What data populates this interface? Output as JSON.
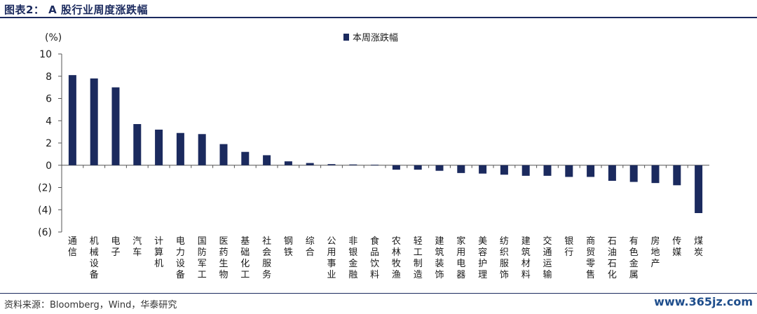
{
  "header": {
    "title": "图表2：  A 股行业周度涨跌幅"
  },
  "footer": {
    "source": "资料来源：Bloomberg，Wind，华泰研究",
    "watermark": "www.365jz.com"
  },
  "colors": {
    "bar": "#1b2a5e",
    "axis": "#555555",
    "title": "#1b2a5e"
  },
  "chart_data": {
    "type": "bar",
    "title": "",
    "xlabel": "",
    "ylabel": "(%)",
    "ylim": [
      -6,
      10
    ],
    "yticks": [
      10,
      8,
      6,
      4,
      2,
      0,
      -2,
      -4,
      -6
    ],
    "ytick_labels": [
      "10",
      "8",
      "6",
      "4",
      "2",
      "0",
      "(2)",
      "(4)",
      "(6)"
    ],
    "grid": false,
    "legend_position": "top-center",
    "categories": [
      "通信",
      "机械设备",
      "电子",
      "汽车",
      "计算机",
      "电力设备",
      "国防军工",
      "医药生物",
      "基础化工",
      "社会服务",
      "钢铁",
      "综合",
      "公用事业",
      "非银金融",
      "食品饮料",
      "农林牧渔",
      "轻工制造",
      "建筑装饰",
      "家用电器",
      "美容护理",
      "纺织服饰",
      "建筑材料",
      "交通运输",
      "银行",
      "商贸零售",
      "石油石化",
      "有色金属",
      "房地产",
      "传媒",
      "煤炭"
    ],
    "series": [
      {
        "name": "本周涨跌幅",
        "values": [
          8.1,
          7.8,
          7.0,
          3.7,
          3.2,
          2.9,
          2.8,
          1.9,
          1.2,
          0.9,
          0.35,
          0.2,
          0.1,
          0.07,
          0.05,
          -0.4,
          -0.4,
          -0.5,
          -0.7,
          -0.75,
          -0.85,
          -0.95,
          -0.95,
          -1.05,
          -1.05,
          -1.4,
          -1.5,
          -1.6,
          -1.8,
          -4.3
        ]
      }
    ]
  }
}
